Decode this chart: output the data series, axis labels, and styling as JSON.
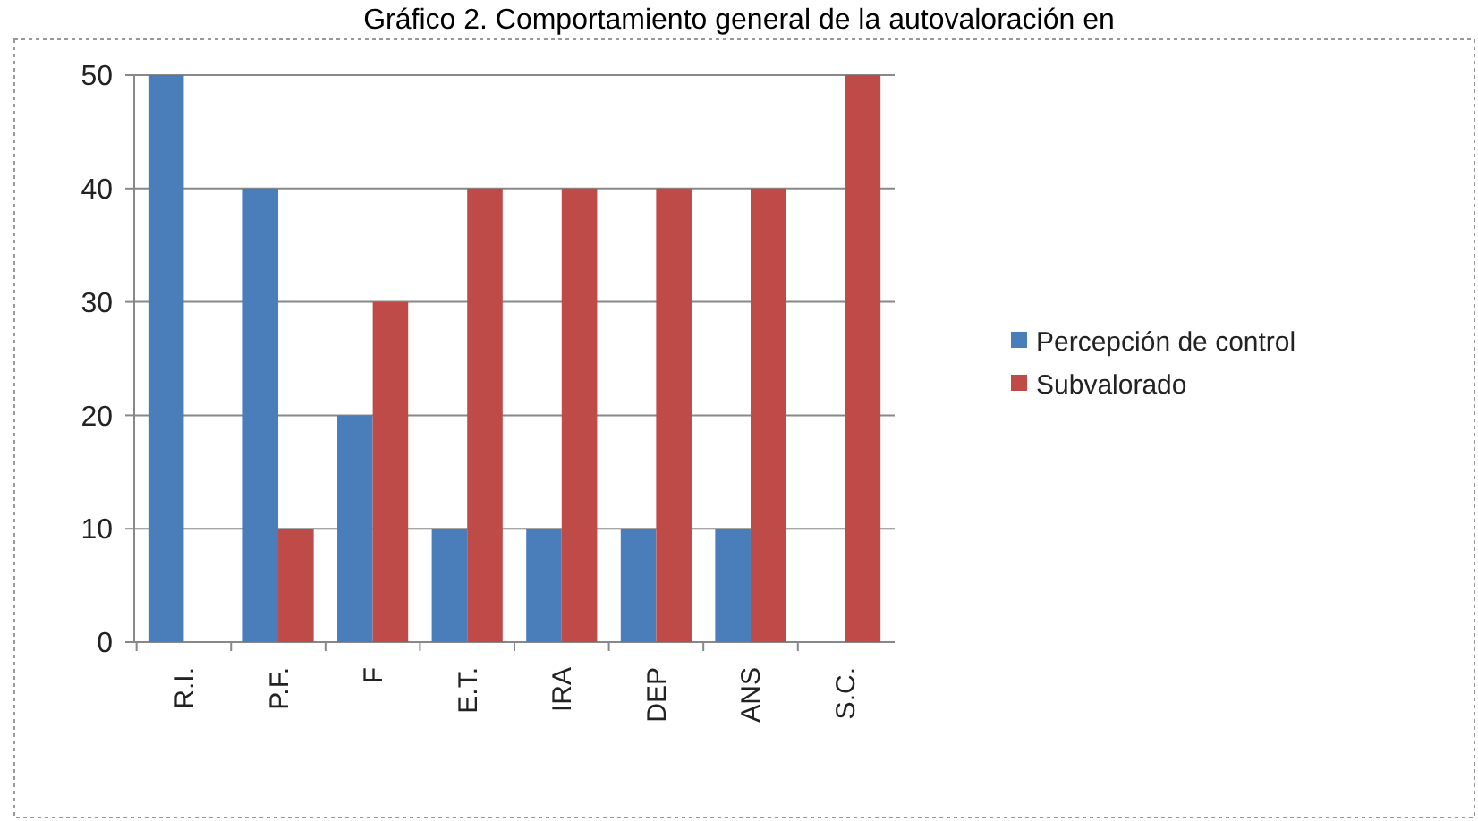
{
  "chart_data": {
    "type": "bar",
    "title": "Gráfico 2. Comportamiento general de la autovaloración en",
    "categories": [
      "R.I.",
      "P.F.",
      "F",
      "E.T.",
      "IRA",
      "DEP",
      "ANS",
      "S.C."
    ],
    "series": [
      {
        "name": "Percepción de control",
        "color": "#4a7ebb",
        "values": [
          50,
          40,
          20,
          10,
          10,
          10,
          10,
          0
        ]
      },
      {
        "name": "Subvalorado",
        "color": "#be4b48",
        "values": [
          0,
          10,
          30,
          40,
          40,
          40,
          40,
          50
        ]
      }
    ],
    "ylim": [
      0,
      50
    ],
    "yticks": [
      0,
      10,
      20,
      30,
      40,
      50
    ],
    "grid": "y",
    "legend": "right"
  }
}
